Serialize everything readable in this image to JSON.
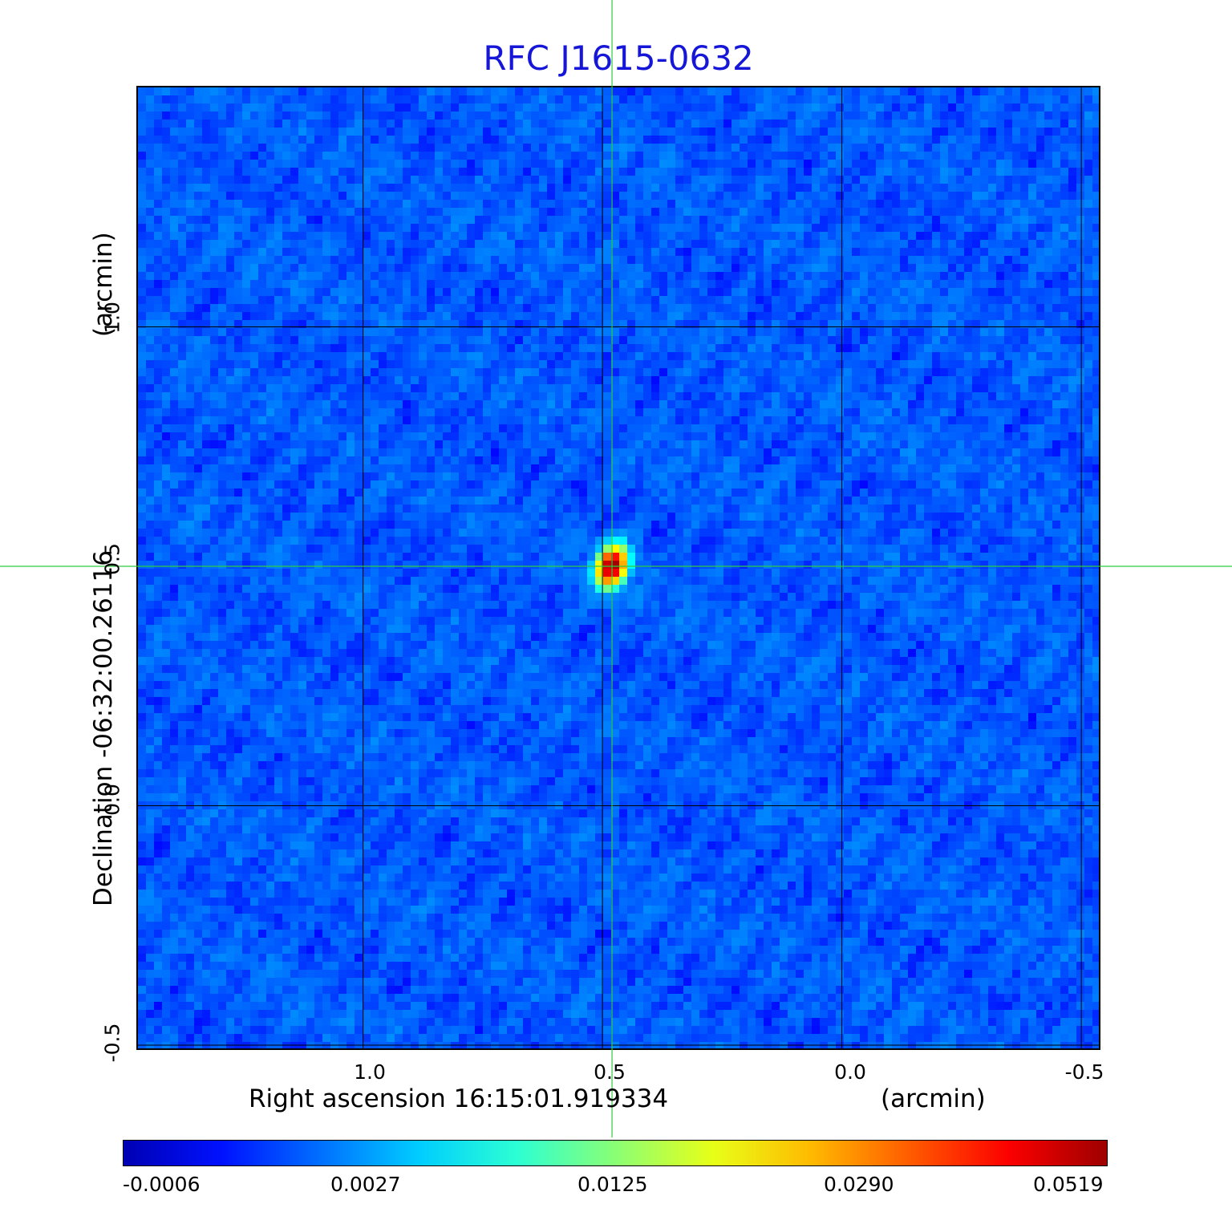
{
  "chart_data": {
    "type": "heatmap",
    "title": "RFC J1615-0632",
    "xlabel": "Right ascension  16:15:01.919334",
    "xunit": "(arcmin)",
    "ylabel": "Declination  -06:32:00.26116",
    "yunit": "(arcmin)",
    "x_ticks": [
      "1.0",
      "0.5",
      "0.0",
      "-0.5"
    ],
    "x_tick_values": [
      1.0,
      0.5,
      0.0,
      -0.5
    ],
    "y_ticks": [
      "1.0",
      "0.5",
      "0.0",
      "-0.5"
    ],
    "y_tick_values": [
      1.0,
      0.5,
      0.0,
      -0.5
    ],
    "xlim": [
      1.47,
      -0.54
    ],
    "ylim": [
      -0.51,
      1.5
    ],
    "grid": true,
    "crosshair": {
      "x": 0.48,
      "y": 0.5
    },
    "source_peak": {
      "x": 0.48,
      "y": 0.5,
      "value": 0.0519
    },
    "colorbar": {
      "colormap": "jet",
      "ticks": [
        "-0.0006",
        "0.0027",
        "0.0125",
        "0.0290",
        "0.0519"
      ],
      "min": -0.0006,
      "max": 0.0519
    }
  }
}
